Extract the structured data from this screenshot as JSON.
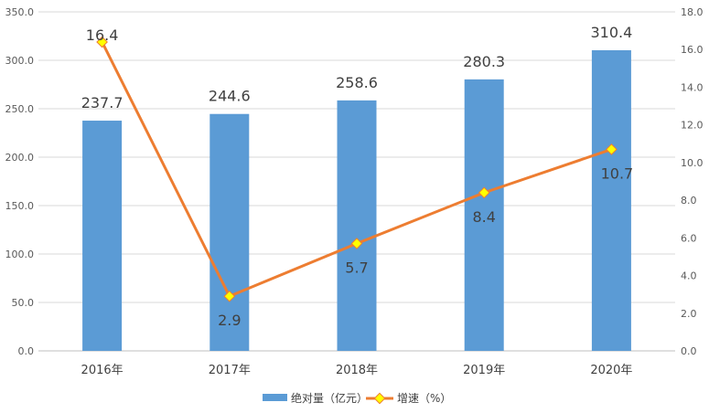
{
  "chart_data": {
    "type": "bar",
    "categories": [
      "2016年",
      "2017年",
      "2018年",
      "2019年",
      "2020年"
    ],
    "series": [
      {
        "name": "绝对量（亿元）",
        "type": "bar",
        "axis": "left",
        "values": [
          237.7,
          244.6,
          258.6,
          280.3,
          310.4
        ],
        "labels": [
          "237.7",
          "244.6",
          "258.6",
          "280.3",
          "310.4"
        ],
        "color": "#5B9BD5"
      },
      {
        "name": "增速（%）",
        "type": "line",
        "axis": "right",
        "values": [
          16.4,
          2.9,
          5.7,
          8.4,
          10.7
        ],
        "labels": [
          "16.4",
          "2.9",
          "5.7",
          "8.4",
          "10.7"
        ],
        "color": "#ED7D31",
        "marker_color": "#FFFF00"
      }
    ],
    "y_left": {
      "ylim": [
        0,
        350
      ],
      "ticks": [
        "0.0",
        "50.0",
        "100.0",
        "150.0",
        "200.0",
        "250.0",
        "300.0",
        "350.0"
      ]
    },
    "y_right": {
      "ylim": [
        0,
        18
      ],
      "ticks": [
        "0.0",
        "2.0",
        "4.0",
        "6.0",
        "8.0",
        "10.0",
        "12.0",
        "14.0",
        "16.0",
        "18.0"
      ]
    },
    "grid": true,
    "legend": "bottom"
  }
}
